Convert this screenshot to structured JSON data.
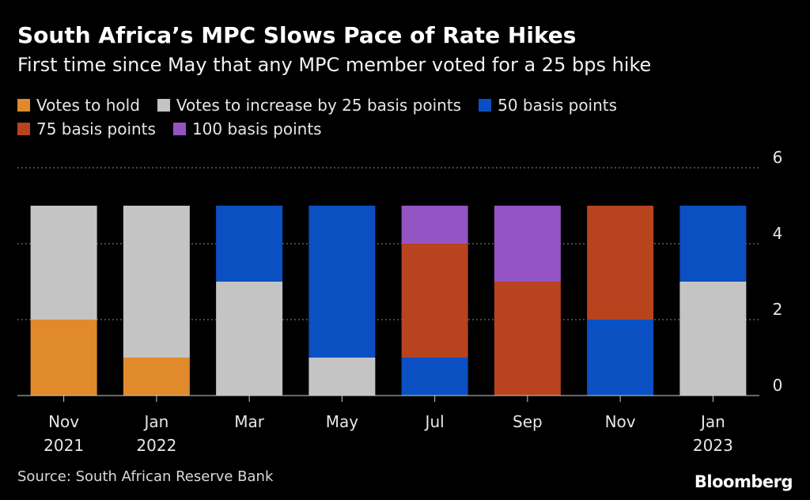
{
  "chart_data": {
    "type": "bar",
    "stacked": true,
    "title": "South Africa’s MPC Slows Pace of Rate Hikes",
    "subtitle": "First time since May that any MPC member voted for a 25 bps hike",
    "categories": [
      [
        "Nov",
        "2021"
      ],
      [
        "Jan",
        "2022"
      ],
      [
        "Mar",
        ""
      ],
      [
        "May",
        ""
      ],
      [
        "Jul",
        ""
      ],
      [
        "Sep",
        ""
      ],
      [
        "Nov",
        ""
      ],
      [
        "Jan",
        "2023"
      ]
    ],
    "series": [
      {
        "name": "Votes to hold",
        "color": "#e08a2c",
        "values": [
          2,
          1,
          0,
          0,
          0,
          0,
          0,
          0
        ]
      },
      {
        "name": "Votes to increase by 25 basis points",
        "color": "#c4c4c4",
        "values": [
          3,
          4,
          3,
          1,
          0,
          0,
          0,
          3
        ]
      },
      {
        "name": "50 basis points",
        "color": "#0a50c2",
        "values": [
          0,
          0,
          2,
          4,
          1,
          0,
          2,
          2
        ]
      },
      {
        "name": "75 basis points",
        "color": "#b8431f",
        "values": [
          0,
          0,
          0,
          0,
          3,
          3,
          3,
          0
        ]
      },
      {
        "name": "100 basis points",
        "color": "#9454c4",
        "values": [
          0,
          0,
          0,
          0,
          1,
          2,
          0,
          0
        ]
      }
    ],
    "legend_rows": [
      [
        0,
        1,
        2
      ],
      [
        3,
        4
      ]
    ],
    "y_ticks": [
      "0",
      "2",
      "4",
      "6"
    ],
    "ylim": [
      0,
      6
    ],
    "grid": true,
    "xlabel": "",
    "ylabel": ""
  },
  "source": "Source: South African Reserve Bank",
  "brand": "Bloomberg"
}
